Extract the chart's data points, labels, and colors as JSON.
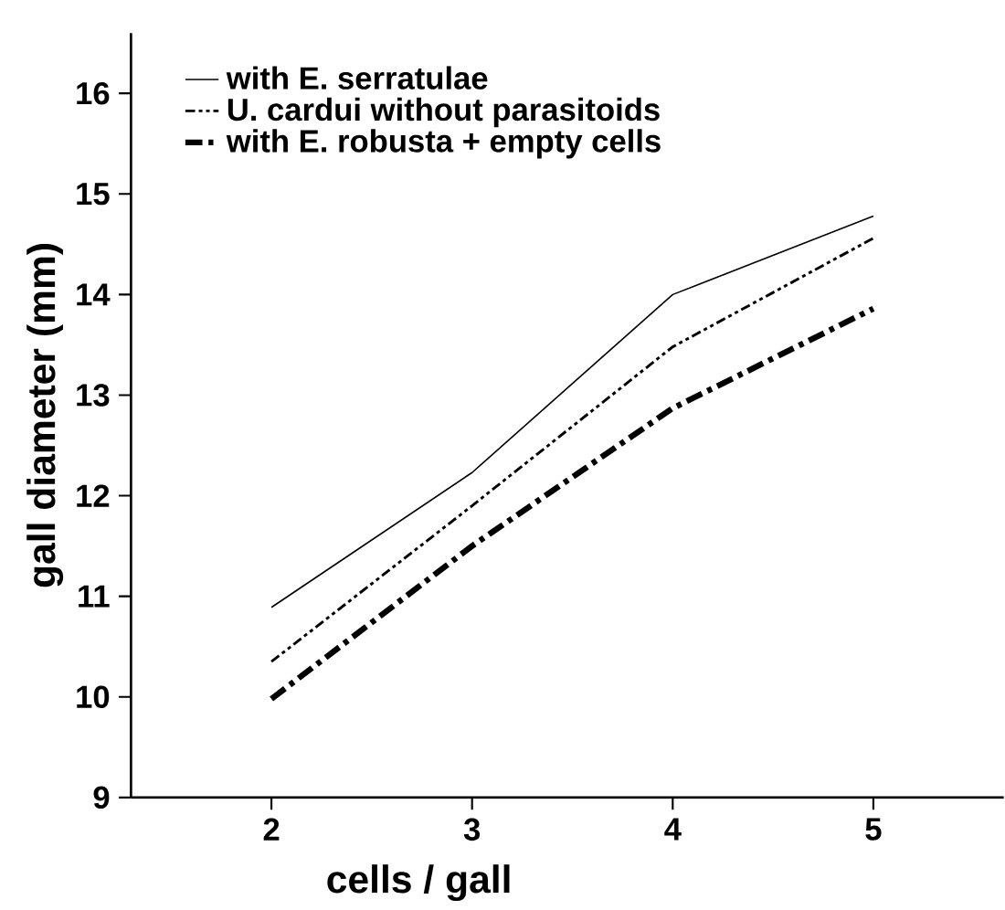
{
  "chart_data": {
    "type": "line",
    "xlabel": "cells / gall",
    "ylabel": "gall diameter (mm)",
    "x": [
      2,
      3,
      4,
      5
    ],
    "xlim": [
      1.3,
      5.65
    ],
    "xticks": [
      2,
      3,
      4,
      5
    ],
    "ylim": [
      9,
      16.6
    ],
    "yticks": [
      9,
      10,
      11,
      12,
      13,
      14,
      15,
      16
    ],
    "grid": false,
    "legend": "top left",
    "marker": "none",
    "series": [
      {
        "name": "with E. serratulae",
        "color": "#000000",
        "line_style": "solid",
        "values": [
          10.89,
          12.23,
          14.0,
          14.78
        ]
      },
      {
        "name": "U. cardui without parasitoids",
        "color": "#000000",
        "line_style": "dashdotdotted",
        "values": [
          10.35,
          11.9,
          13.48,
          14.56
        ]
      },
      {
        "name": "with E. robusta + empty cells",
        "color": "#000000",
        "line_style": "dashdotted",
        "values": [
          9.98,
          11.5,
          12.87,
          13.86
        ]
      }
    ]
  }
}
